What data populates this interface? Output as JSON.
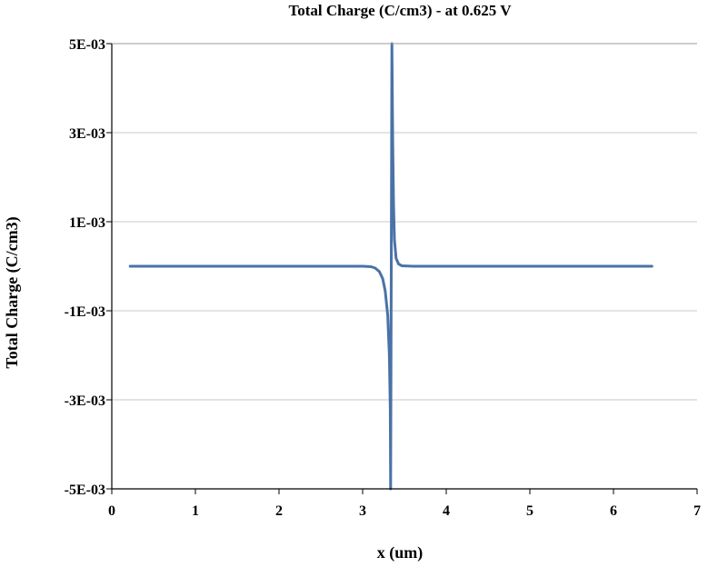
{
  "chart_data": {
    "type": "line",
    "title": "Total Charge (C/cm3) - at 0.625 V",
    "xlabel": "x (um)",
    "ylabel": "Total Charge (C/cm3)",
    "xlim": [
      0,
      7
    ],
    "ylim": [
      -0.005,
      0.005
    ],
    "x_ticks": [
      "0",
      "1",
      "2",
      "3",
      "4",
      "5",
      "6",
      "7"
    ],
    "y_ticks": [
      "5E-03",
      "3E-03",
      "1E-03",
      "-1E-03",
      "-3E-03",
      "-5E-03"
    ],
    "grid": "horizontal",
    "series": [
      {
        "color": "#4a72a6",
        "x": [
          0.22,
          1.0,
          2.0,
          2.8,
          3.0,
          3.1,
          3.15,
          3.2,
          3.24,
          3.27,
          3.3,
          3.32,
          3.33,
          3.335,
          3.35,
          3.36,
          3.37,
          3.38,
          3.4,
          3.43,
          3.47,
          3.6,
          4.0,
          5.0,
          6.0,
          6.46
        ],
        "y": [
          0,
          0,
          0,
          0,
          0,
          -1e-05,
          -4e-05,
          -0.00012,
          -0.00028,
          -0.00055,
          -0.0011,
          -0.002,
          -0.0032,
          -0.005,
          0.005,
          0.0028,
          0.0014,
          0.0006,
          0.00018,
          5e-05,
          1e-05,
          0,
          0,
          0,
          0,
          0
        ]
      }
    ]
  }
}
